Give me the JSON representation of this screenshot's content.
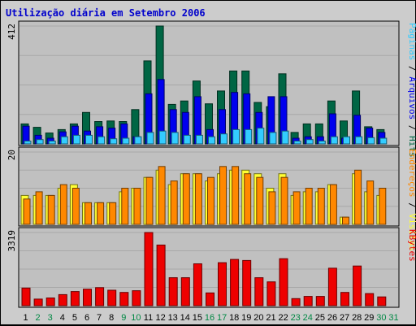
{
  "chart_data": {
    "type": "bar",
    "title": "Utilização diária em Setembro 2006",
    "days": [
      "1",
      "2",
      "3",
      "4",
      "5",
      "6",
      "7",
      "8",
      "9",
      "10",
      "11",
      "12",
      "13",
      "14",
      "15",
      "16",
      "17",
      "18",
      "19",
      "20",
      "21",
      "22",
      "23",
      "24",
      "25",
      "26",
      "27",
      "28",
      "29",
      "30",
      "31"
    ],
    "weekend_days": [
      "2",
      "3",
      "9",
      "10",
      "16",
      "17",
      "23",
      "24",
      "30",
      "31"
    ],
    "colors": {
      "hits": "#006644",
      "files": "#0000ee",
      "pages": "#33ccff",
      "visits": "#ffff33",
      "sites": "#ff8800",
      "kbytes": "#ee0000",
      "weekday_tick": "#000000",
      "weekend_tick": "#008844"
    },
    "panels": [
      {
        "name": "hits_panel",
        "ymax_label": "412",
        "ylim": [
          0,
          412
        ],
        "series": [
          {
            "key": "hits",
            "name": "Hits",
            "values": [
              70,
              58,
              38,
              50,
              70,
              110,
              78,
              80,
              78,
              120,
              290,
              412,
              138,
              150,
              220,
              140,
              185,
              255,
              255,
              145,
              130,
              245,
              40,
              70,
              70,
              150,
              80,
              185,
              60,
              50
            ]
          },
          {
            "key": "files",
            "name": "Arquivos",
            "values": [
              62,
              30,
              20,
              42,
              62,
              45,
              60,
              55,
              70,
              25,
              175,
              225,
              120,
              110,
              165,
              50,
              120,
              180,
              175,
              110,
              165,
              165,
              20,
              25,
              25,
              105,
              20,
              100,
              55,
              40
            ]
          },
          {
            "key": "pages",
            "name": "Páginas",
            "values": [
              10,
              15,
              10,
              25,
              30,
              30,
              25,
              18,
              20,
              25,
              40,
              45,
              40,
              30,
              30,
              25,
              35,
              50,
              50,
              55,
              40,
              45,
              10,
              15,
              10,
              25,
              25,
              25,
              22,
              20
            ]
          }
        ]
      },
      {
        "name": "visits_panel",
        "ymax_label": "20",
        "ylim": [
          0,
          20
        ],
        "series": [
          {
            "key": "visits",
            "name": "Visitas",
            "values": [
              8,
              8,
              8,
              10,
              11,
              6,
              6,
              6,
              9,
              10,
              13,
              15,
              11,
              14,
              14,
              12,
              14,
              15,
              15,
              14,
              10,
              14,
              8,
              9,
              9,
              11,
              2,
              14,
              9,
              8
            ]
          },
          {
            "key": "sites",
            "name": "Endereços",
            "values": [
              7,
              9,
              8,
              11,
              10,
              6,
              6,
              6,
              10,
              10,
              13,
              16,
              12,
              14,
              14,
              13,
              16,
              16,
              14,
              13,
              9,
              13,
              9,
              10,
              10,
              11,
              2,
              15,
              12,
              10
            ]
          }
        ]
      },
      {
        "name": "kbytes_panel",
        "ymax_label": "3319",
        "ylim": [
          0,
          3319
        ],
        "series": [
          {
            "key": "kbytes",
            "name": "KBytes",
            "values": [
              800,
              300,
              350,
              500,
              640,
              750,
              820,
              700,
              600,
              680,
              3319,
              2750,
              1270,
              1270,
              1900,
              580,
              1950,
              2100,
              2050,
              1270,
              1080,
              2130,
              320,
              420,
              420,
              1700,
              600,
              1800,
              550,
              400
            ]
          }
        ]
      }
    ]
  }
}
